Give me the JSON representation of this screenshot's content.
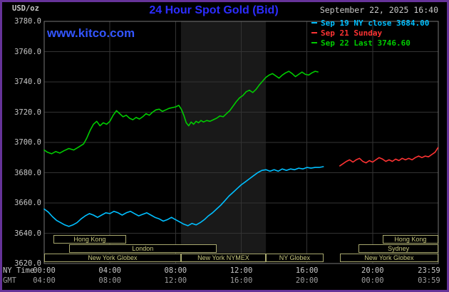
{
  "header": {
    "units": "USD/oz",
    "title": "24 Hour Spot Gold (Bid)",
    "datetime": "September 22, 2025 16:40",
    "watermark": "www.kitco.com"
  },
  "legend": [
    {
      "id": "sep19",
      "label": "Sep 19 NY close 3684.00",
      "color": "#00bfff"
    },
    {
      "id": "sep21",
      "label": "Sep 21 Sunday",
      "color": "#ff3333"
    },
    {
      "id": "sep22",
      "label": "Sep 22 Last 3746.60",
      "color": "#00cc00"
    }
  ],
  "colors": {
    "frame": "#663399",
    "background": "#000000",
    "title": "#2d2dff",
    "watermark": "#3355ff",
    "grid": "#333333",
    "plot_border": "#767676",
    "band": "#191919",
    "axis_text": "#c8c8c8",
    "gmt_text": "#9f9f9f",
    "session_border": "#a8a86e",
    "session_text": "#c8c87e",
    "cyan": "#00bfff",
    "red": "#ff3333",
    "green": "#00cc00"
  },
  "axes": {
    "ny_label": "NY Time",
    "gmt_label": "GMT",
    "y_ticks": [
      "3780.0",
      "3760.0",
      "3740.0",
      "3720.0",
      "3700.0",
      "3680.0",
      "3660.0",
      "3640.0",
      "3620.0"
    ],
    "y_values": [
      3780,
      3760,
      3740,
      3720,
      3700,
      3680,
      3660,
      3640,
      3620
    ],
    "x_ticks": [
      {
        "h": 0,
        "ny": "00:00",
        "gmt": "04:00"
      },
      {
        "h": 4,
        "ny": "04:00",
        "gmt": "08:00"
      },
      {
        "h": 8,
        "ny": "08:00",
        "gmt": "12:00"
      },
      {
        "h": 12,
        "ny": "12:00",
        "gmt": "16:00"
      },
      {
        "h": 16,
        "ny": "16:00",
        "gmt": "20:00"
      },
      {
        "h": 20,
        "ny": "20:00",
        "gmt": "00:00"
      },
      {
        "h": 23.983,
        "ny": "23:59",
        "gmt": "03:59"
      }
    ]
  },
  "band": {
    "name": "New York NYMEX session",
    "start": 8.33,
    "end": 13.5
  },
  "sessions": {
    "rows": [
      [
        {
          "label": "Hong Kong",
          "start": 0.55,
          "end": 5.0
        },
        {
          "label": "Hong Kong",
          "start": 20.6,
          "end": 24
        }
      ],
      [
        {
          "label": "London",
          "start": 1.5,
          "end": 10.5
        },
        {
          "label": "Sydney",
          "start": 19.15,
          "end": 24
        }
      ],
      [
        {
          "label": "New York Globex",
          "start": 0,
          "end": 8.33
        },
        {
          "label": "New York NYMEX",
          "start": 8.33,
          "end": 13.5
        },
        {
          "label": "NY Globex",
          "start": 13.5,
          "end": 17.0
        },
        {
          "label": "New York Globex",
          "start": 18.0,
          "end": 24
        }
      ]
    ]
  },
  "chart_data": {
    "type": "line",
    "title": "24 Hour Spot Gold (Bid)",
    "xlabel": "NY Time",
    "ylabel": "USD/oz",
    "x_axis": {
      "range_hours": [
        0,
        24
      ],
      "ticks_ny": [
        "00:00",
        "04:00",
        "08:00",
        "12:00",
        "16:00",
        "20:00",
        "23:59"
      ],
      "ticks_gmt": [
        "04:00",
        "08:00",
        "12:00",
        "16:00",
        "20:00",
        "00:00",
        "03:59"
      ]
    },
    "y_axis": {
      "range": [
        3620,
        3780
      ],
      "tick_step": 20
    },
    "grid": true,
    "legend_position": "top-right",
    "series": [
      {
        "id": "sep19",
        "name": "Sep 19 NY close",
        "color": "#00bfff",
        "close": 3684.0,
        "points": [
          [
            0,
            3656
          ],
          [
            0.25,
            3654
          ],
          [
            0.5,
            3651
          ],
          [
            0.75,
            3648.5
          ],
          [
            1,
            3647
          ],
          [
            1.25,
            3645.5
          ],
          [
            1.5,
            3644.5
          ],
          [
            1.75,
            3645.5
          ],
          [
            2,
            3647
          ],
          [
            2.25,
            3649.5
          ],
          [
            2.5,
            3651.5
          ],
          [
            2.75,
            3653
          ],
          [
            3,
            3652
          ],
          [
            3.25,
            3650.5
          ],
          [
            3.5,
            3652
          ],
          [
            3.75,
            3653.5
          ],
          [
            4,
            3653
          ],
          [
            4.25,
            3654.5
          ],
          [
            4.5,
            3653.5
          ],
          [
            4.75,
            3652
          ],
          [
            5,
            3653.5
          ],
          [
            5.25,
            3654.5
          ],
          [
            5.5,
            3653
          ],
          [
            5.75,
            3651.5
          ],
          [
            6,
            3652.5
          ],
          [
            6.25,
            3653.5
          ],
          [
            6.5,
            3652
          ],
          [
            6.75,
            3650.5
          ],
          [
            7,
            3649.5
          ],
          [
            7.25,
            3648
          ],
          [
            7.5,
            3649
          ],
          [
            7.75,
            3650.5
          ],
          [
            8,
            3649
          ],
          [
            8.25,
            3647.5
          ],
          [
            8.5,
            3646
          ],
          [
            8.75,
            3645
          ],
          [
            9,
            3646.5
          ],
          [
            9.25,
            3645.5
          ],
          [
            9.5,
            3647
          ],
          [
            9.75,
            3649
          ],
          [
            10,
            3651.5
          ],
          [
            10.25,
            3653.5
          ],
          [
            10.5,
            3656
          ],
          [
            10.75,
            3658.5
          ],
          [
            11,
            3661.5
          ],
          [
            11.25,
            3664.5
          ],
          [
            11.5,
            3667
          ],
          [
            11.75,
            3669.5
          ],
          [
            12,
            3672
          ],
          [
            12.25,
            3674
          ],
          [
            12.5,
            3676
          ],
          [
            12.75,
            3678
          ],
          [
            13,
            3680
          ],
          [
            13.25,
            3681.5
          ],
          [
            13.5,
            3682
          ],
          [
            13.75,
            3681
          ],
          [
            14,
            3682
          ],
          [
            14.25,
            3681
          ],
          [
            14.5,
            3682.5
          ],
          [
            14.75,
            3681.5
          ],
          [
            15,
            3682.5
          ],
          [
            15.25,
            3682
          ],
          [
            15.5,
            3683
          ],
          [
            15.75,
            3682.5
          ],
          [
            16,
            3683.5
          ],
          [
            16.25,
            3683
          ],
          [
            16.5,
            3683.5
          ],
          [
            16.75,
            3683.5
          ],
          [
            17,
            3684
          ]
        ]
      },
      {
        "id": "sep21",
        "name": "Sep 21 Sunday",
        "color": "#ff3333",
        "points": [
          [
            18,
            3684.5
          ],
          [
            18.2,
            3686
          ],
          [
            18.4,
            3687.5
          ],
          [
            18.6,
            3688.5
          ],
          [
            18.8,
            3687
          ],
          [
            19,
            3688.5
          ],
          [
            19.2,
            3689.5
          ],
          [
            19.4,
            3687.5
          ],
          [
            19.6,
            3686.5
          ],
          [
            19.8,
            3688
          ],
          [
            20,
            3687
          ],
          [
            20.2,
            3688.5
          ],
          [
            20.4,
            3690
          ],
          [
            20.6,
            3689
          ],
          [
            20.8,
            3687.5
          ],
          [
            21,
            3688.5
          ],
          [
            21.2,
            3687.5
          ],
          [
            21.4,
            3689
          ],
          [
            21.6,
            3688
          ],
          [
            21.8,
            3689.5
          ],
          [
            22,
            3688.5
          ],
          [
            22.2,
            3689.5
          ],
          [
            22.4,
            3688.5
          ],
          [
            22.6,
            3690
          ],
          [
            22.8,
            3691
          ],
          [
            23,
            3690
          ],
          [
            23.2,
            3691
          ],
          [
            23.4,
            3690.5
          ],
          [
            23.6,
            3692
          ],
          [
            23.8,
            3693.5
          ],
          [
            23.98,
            3696.5
          ]
        ]
      },
      {
        "id": "sep22",
        "name": "Sep 22",
        "color": "#00cc00",
        "last": 3746.6,
        "points": [
          [
            0,
            3695
          ],
          [
            0.2,
            3693.5
          ],
          [
            0.45,
            3692.5
          ],
          [
            0.7,
            3694
          ],
          [
            0.95,
            3693
          ],
          [
            1.2,
            3694.5
          ],
          [
            1.5,
            3696
          ],
          [
            1.8,
            3695
          ],
          [
            2.1,
            3697
          ],
          [
            2.4,
            3699
          ],
          [
            2.6,
            3703
          ],
          [
            2.8,
            3708
          ],
          [
            3,
            3712
          ],
          [
            3.2,
            3714
          ],
          [
            3.4,
            3711
          ],
          [
            3.6,
            3713
          ],
          [
            3.8,
            3712
          ],
          [
            4,
            3714
          ],
          [
            4.2,
            3718
          ],
          [
            4.4,
            3721
          ],
          [
            4.6,
            3719
          ],
          [
            4.8,
            3717
          ],
          [
            5,
            3718
          ],
          [
            5.2,
            3716
          ],
          [
            5.4,
            3715
          ],
          [
            5.6,
            3716.5
          ],
          [
            5.8,
            3715.5
          ],
          [
            6,
            3717
          ],
          [
            6.2,
            3719
          ],
          [
            6.4,
            3718
          ],
          [
            6.6,
            3720
          ],
          [
            6.8,
            3721.5
          ],
          [
            7,
            3722
          ],
          [
            7.2,
            3720.5
          ],
          [
            7.4,
            3721.5
          ],
          [
            7.6,
            3722.5
          ],
          [
            7.8,
            3723
          ],
          [
            8,
            3723.5
          ],
          [
            8.2,
            3724.5
          ],
          [
            8.35,
            3722
          ],
          [
            8.5,
            3718
          ],
          [
            8.65,
            3713
          ],
          [
            8.8,
            3711
          ],
          [
            8.95,
            3713.5
          ],
          [
            9.1,
            3712
          ],
          [
            9.25,
            3714
          ],
          [
            9.4,
            3713
          ],
          [
            9.55,
            3714.5
          ],
          [
            9.7,
            3713.5
          ],
          [
            9.9,
            3714.5
          ],
          [
            10.1,
            3714
          ],
          [
            10.3,
            3715
          ],
          [
            10.5,
            3716
          ],
          [
            10.7,
            3717.5
          ],
          [
            10.9,
            3717
          ],
          [
            11.1,
            3719
          ],
          [
            11.3,
            3721
          ],
          [
            11.5,
            3724
          ],
          [
            11.7,
            3727
          ],
          [
            11.9,
            3729.5
          ],
          [
            12.1,
            3731
          ],
          [
            12.3,
            3733.5
          ],
          [
            12.5,
            3734.5
          ],
          [
            12.7,
            3733
          ],
          [
            12.9,
            3735
          ],
          [
            13.1,
            3738
          ],
          [
            13.3,
            3740.5
          ],
          [
            13.5,
            3743
          ],
          [
            13.7,
            3744.5
          ],
          [
            13.9,
            3745.5
          ],
          [
            14.1,
            3744
          ],
          [
            14.3,
            3742.5
          ],
          [
            14.5,
            3744.5
          ],
          [
            14.7,
            3746
          ],
          [
            14.9,
            3747
          ],
          [
            15.1,
            3745.5
          ],
          [
            15.3,
            3743.5
          ],
          [
            15.5,
            3745
          ],
          [
            15.7,
            3746.5
          ],
          [
            15.9,
            3745
          ],
          [
            16.1,
            3744.5
          ],
          [
            16.3,
            3746
          ],
          [
            16.5,
            3747
          ],
          [
            16.67,
            3746.6
          ]
        ]
      }
    ]
  }
}
